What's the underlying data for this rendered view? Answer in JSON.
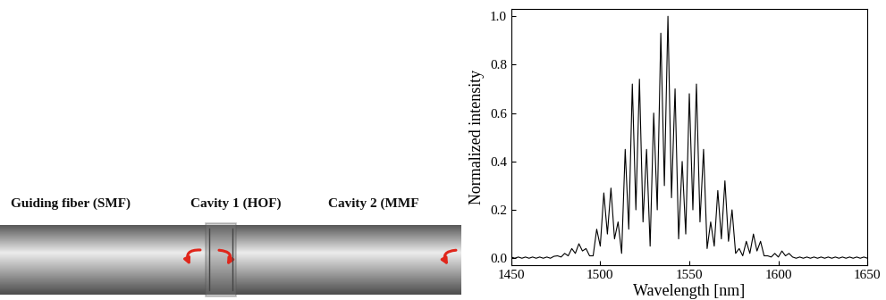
{
  "diagram": {
    "labels": [
      "Guiding fiber (SMF)",
      "Cavity 1 (HOF)",
      "Cavity 2 (MMF"
    ]
  },
  "chart_data": {
    "type": "line",
    "xlabel": "Wavelength [nm]",
    "ylabel": "Normalized intensity",
    "x": [
      1450,
      1452,
      1454,
      1456,
      1458,
      1460,
      1462,
      1464,
      1466,
      1468,
      1470,
      1472,
      1474,
      1476,
      1478,
      1480,
      1482,
      1484,
      1486,
      1488,
      1490,
      1492,
      1494,
      1496,
      1498,
      1500,
      1502,
      1504,
      1506,
      1508,
      1510,
      1512,
      1514,
      1516,
      1518,
      1520,
      1522,
      1524,
      1526,
      1528,
      1530,
      1532,
      1534,
      1536,
      1538,
      1540,
      1542,
      1544,
      1546,
      1548,
      1550,
      1552,
      1554,
      1556,
      1558,
      1560,
      1562,
      1564,
      1566,
      1568,
      1570,
      1572,
      1574,
      1576,
      1578,
      1580,
      1582,
      1584,
      1586,
      1588,
      1590,
      1592,
      1594,
      1596,
      1598,
      1600,
      1602,
      1604,
      1606,
      1608,
      1610,
      1612,
      1614,
      1616,
      1618,
      1620,
      1622,
      1624,
      1626,
      1628,
      1630,
      1632,
      1634,
      1636,
      1638,
      1640,
      1642,
      1644,
      1646,
      1648,
      1650
    ],
    "values": [
      0.005,
      0.0,
      0.005,
      0.0,
      0.005,
      0.0,
      0.005,
      0.0,
      0.005,
      0.0,
      0.005,
      0.0,
      0.008,
      0.01,
      0.005,
      0.02,
      0.01,
      0.04,
      0.02,
      0.06,
      0.03,
      0.04,
      0.01,
      0.01,
      0.12,
      0.05,
      0.27,
      0.1,
      0.29,
      0.08,
      0.15,
      0.02,
      0.45,
      0.12,
      0.72,
      0.2,
      0.74,
      0.15,
      0.45,
      0.05,
      0.6,
      0.2,
      0.93,
      0.3,
      1.0,
      0.25,
      0.7,
      0.08,
      0.4,
      0.1,
      0.68,
      0.2,
      0.72,
      0.15,
      0.45,
      0.04,
      0.15,
      0.05,
      0.28,
      0.08,
      0.32,
      0.07,
      0.2,
      0.02,
      0.04,
      0.01,
      0.07,
      0.02,
      0.1,
      0.03,
      0.07,
      0.01,
      0.01,
      0.005,
      0.02,
      0.005,
      0.03,
      0.01,
      0.02,
      0.005,
      0.0,
      0.005,
      0.0,
      0.005,
      0.0,
      0.005,
      0.0,
      0.005,
      0.0,
      0.005,
      0.0,
      0.005,
      0.0,
      0.005,
      0.0,
      0.005,
      0.0,
      0.005,
      0.0,
      0.005,
      0.0
    ],
    "color": "#000000",
    "xlim": [
      1450,
      1650
    ],
    "xticks": [
      1450,
      1500,
      1550,
      1600,
      1650
    ],
    "ylim": [
      -0.03,
      1.03
    ],
    "yticks": [
      {
        "value": 0.0,
        "label": "0.0"
      },
      {
        "value": 0.2,
        "label": "0.2"
      },
      {
        "value": 0.4,
        "label": "0.4"
      },
      {
        "value": 0.6,
        "label": "0.6"
      },
      {
        "value": 0.8,
        "label": "0.8"
      },
      {
        "value": 1.0,
        "label": "1.0"
      }
    ],
    "grid": false
  }
}
